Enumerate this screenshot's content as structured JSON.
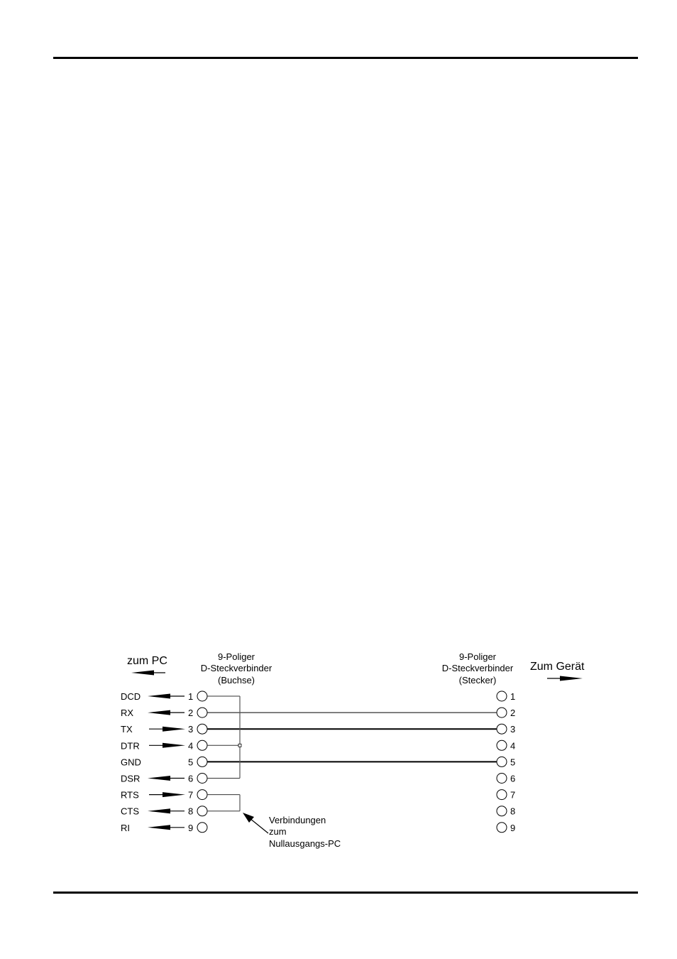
{
  "diagram": {
    "left_direction": "zum PC",
    "right_direction": "Zum Gerät",
    "left_connector": [
      "9-Poliger",
      "D-Steckverbinder",
      "(Buchse)"
    ],
    "right_connector": [
      "9-Poliger",
      "D-Steckverbinder",
      "(Stecker)"
    ],
    "signals": [
      {
        "name": "DCD",
        "pin": "1",
        "direction": "to-pc"
      },
      {
        "name": "RX",
        "pin": "2",
        "direction": "to-pc"
      },
      {
        "name": "TX",
        "pin": "3",
        "direction": "from-pc"
      },
      {
        "name": "DTR",
        "pin": "4",
        "direction": "from-pc"
      },
      {
        "name": "GND",
        "pin": "5",
        "direction": "none"
      },
      {
        "name": "DSR",
        "pin": "6",
        "direction": "to-pc"
      },
      {
        "name": "RTS",
        "pin": "7",
        "direction": "from-pc"
      },
      {
        "name": "CTS",
        "pin": "8",
        "direction": "to-pc"
      },
      {
        "name": "RI",
        "pin": "9",
        "direction": "to-pc"
      }
    ],
    "right_pins": [
      "1",
      "2",
      "3",
      "4",
      "5",
      "6",
      "7",
      "8",
      "9"
    ],
    "straight_connections": [
      [
        "2",
        "2"
      ],
      [
        "3",
        "3"
      ],
      [
        "5",
        "5"
      ]
    ],
    "loopbacks": [
      [
        "1",
        "4",
        "6"
      ],
      [
        "7",
        "8"
      ]
    ],
    "note": [
      "Verbindungen",
      "zum",
      "Nullausgangs-PC"
    ]
  }
}
